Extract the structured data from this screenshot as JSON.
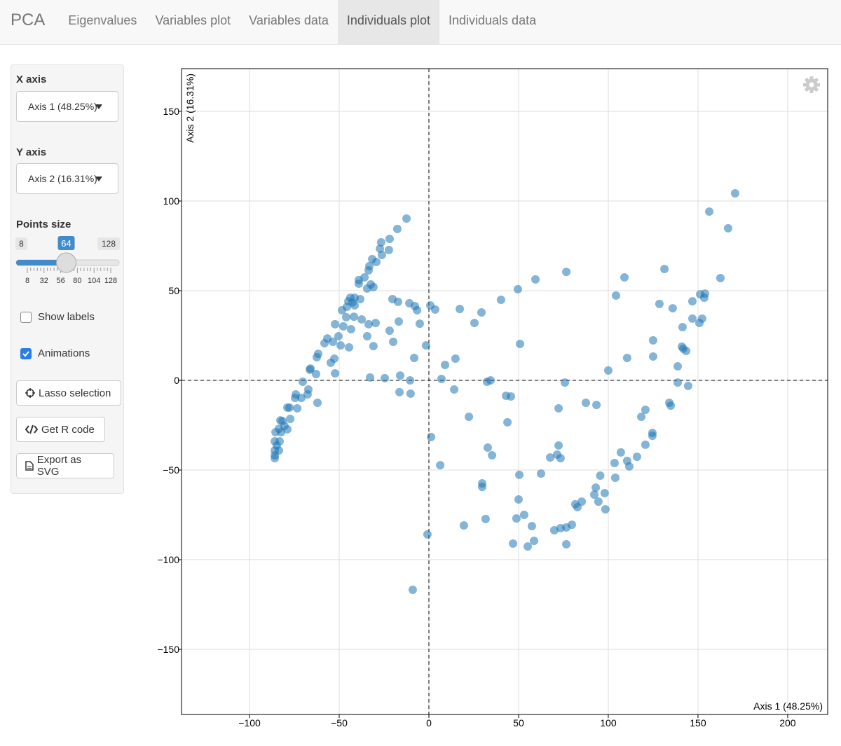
{
  "nav": {
    "brand": "PCA",
    "tabs": [
      "Eigenvalues",
      "Variables plot",
      "Variables data",
      "Individuals plot",
      "Individuals data"
    ],
    "active": 3
  },
  "sidebar": {
    "x_axis_label": "X axis",
    "x_axis_value": "Axis 1 (48.25%)",
    "y_axis_label": "Y axis",
    "y_axis_value": "Axis 2 (16.31%)",
    "points_size": {
      "label": "Points size",
      "min": 8,
      "max": 128,
      "value": 64,
      "ticks": [
        8,
        32,
        56,
        80,
        104,
        128
      ]
    },
    "checkboxes": [
      {
        "label": "Show labels",
        "checked": false
      },
      {
        "label": "Animations",
        "checked": true
      }
    ],
    "buttons": [
      "Lasso selection",
      "Get R code",
      "Export as SVG"
    ]
  },
  "chart_data": {
    "type": "scatter",
    "x_label": "Axis 1 (48.25%)",
    "y_label": "Axis 2 (16.31%)",
    "color": "#1f77b4",
    "grid": true,
    "zero_lines": true,
    "xlim": [
      -137.9,
      222.3
    ],
    "ylim": [
      -186.3,
      173.8
    ],
    "xticks": [
      {
        "value": -100,
        "label": "−100"
      },
      {
        "value": -50,
        "label": "−50"
      },
      0,
      50,
      100,
      150,
      200
    ],
    "yticks": [
      {
        "value": -150,
        "label": "−150"
      },
      {
        "value": -100,
        "label": "−100"
      },
      {
        "value": -50,
        "label": "−50"
      },
      0,
      50,
      100,
      150
    ],
    "x": [
      -12.5,
      -17.6,
      -21.9,
      -26.6,
      -22.3,
      -27.3,
      -26.2,
      -31.6,
      -29.3,
      -33.2,
      -33.6,
      -35.9,
      -39.1,
      -32.4,
      -34.4,
      -39.1,
      -43.8,
      -41.4,
      -38.3,
      -44.9,
      -42.6,
      -45.7,
      -48.4,
      -41.4,
      -46.1,
      -41.8,
      -37.5,
      -52.3,
      -47.7,
      -43.4,
      -50.4,
      -53.5,
      -56.6,
      -58.2,
      -49.2,
      -44.5,
      -61.7,
      -62.5,
      -52.7,
      -54.7,
      -66.0,
      -66.4,
      -62.9,
      -52.3,
      -70.3,
      -67.2,
      -67.6,
      -74.2,
      -74.6,
      -71.1,
      -62.1,
      -73.4,
      -78.9,
      -77.7,
      -77.3,
      -82.8,
      -81.6,
      -80.5,
      -83.6,
      -78.9,
      -85.5,
      -82.4,
      -85.9,
      -83.2,
      -84.8,
      -85.9,
      -83.6,
      -85.9,
      -85.9,
      -30.9,
      -20.3,
      -17.2,
      -10.9,
      -7.8,
      -6.6,
      0.8,
      3.5,
      -16.8,
      -5.1,
      -29.7,
      -33.6,
      -21.9,
      -34.4,
      -19.9,
      -30.9,
      -1.6,
      -8.2,
      -32.8,
      -24.6,
      -16.0,
      -10.5,
      -16.4,
      -10.2,
      76.6,
      59.4,
      49.6,
      40.2,
      17.2,
      29.3,
      25.4,
      50.8,
      14.8,
      9.0,
      7.0,
      32.4,
      34.4,
      14.1,
      43.0,
      45.7,
      75.8,
      22.3,
      43.8,
      72.3,
      87.5,
      93.4,
      100.0,
      110.5,
      104.3,
      109.0,
      131.3,
      128.5,
      135.9,
      146.9,
      151.2,
      153.9,
      153.5,
      162.5,
      166.8,
      156.3,
      170.7,
      152.3,
      150.8,
      146.9,
      141.4,
      141.0,
      141.8,
      143.4,
      125.0,
      125.0,
      138.7,
      138.7,
      144.5,
      134.0,
      134.8,
      120.7,
      118.4,
      124.6,
      124.6,
      120.7,
      116.0,
      107.0,
      110.5,
      111.7,
      103.5,
      103.9,
      95.5,
      93.0,
      98.0,
      92.2,
      94.5,
      98.4,
      85.2,
      81.6,
      82.8,
      79.7,
      76.6,
      73.4,
      69.9,
      76.6,
      58.6,
      55.1,
      46.9,
      57.4,
      53.1,
      48.8,
      50.0,
      50.4,
      62.5,
      67.6,
      71.5,
      72.3,
      73.4,
      32.8,
      35.2,
      29.7,
      29.7,
      31.6,
      19.5,
      6.3,
      1.2,
      -0.8,
      -9.0
    ],
    "values": [
      90.2,
      84.4,
      78.9,
      77.0,
      72.7,
      73.4,
      69.9,
      67.6,
      66.0,
      63.7,
      61.3,
      57.4,
      55.9,
      53.5,
      51.2,
      53.9,
      46.1,
      46.1,
      45.3,
      44.1,
      43.4,
      41.0,
      39.1,
      41.8,
      35.2,
      35.5,
      34.0,
      31.3,
      30.1,
      28.5,
      24.6,
      21.5,
      23.4,
      20.7,
      19.5,
      18.4,
      14.8,
      12.9,
      12.1,
      9.8,
      6.6,
      5.9,
      3.5,
      3.9,
      -0.8,
      -5.1,
      -7.8,
      -7.8,
      -9.8,
      -9.8,
      -12.5,
      -15.6,
      -15.2,
      -15.2,
      -21.5,
      -22.3,
      -22.7,
      -25.4,
      -27.0,
      -27.3,
      -28.9,
      -28.9,
      -34.0,
      -34.0,
      -36.3,
      -39.1,
      -39.1,
      -41.8,
      -43.4,
      52.0,
      45.3,
      43.8,
      43.0,
      41.4,
      39.1,
      41.8,
      39.5,
      32.8,
      31.6,
      32.0,
      31.3,
      27.7,
      24.6,
      21.5,
      19.1,
      19.5,
      12.5,
      1.6,
      1.2,
      2.7,
      0,
      -6.6,
      -7.4,
      60.5,
      56.3,
      50.8,
      44.9,
      39.8,
      37.9,
      32.0,
      20.3,
      12.1,
      8.6,
      0.8,
      -0.8,
      0,
      -5.1,
      -8.6,
      -9.0,
      -1.2,
      -20.3,
      -23.4,
      -15.6,
      -12.5,
      -13.7,
      5.5,
      12.5,
      47.3,
      57.4,
      62.1,
      42.6,
      40.2,
      44.1,
      48.0,
      48.4,
      46.1,
      57.0,
      84.8,
      94.1,
      104.3,
      34.4,
      32.0,
      34.4,
      29.7,
      18.8,
      17.6,
      16.4,
      22.3,
      13.3,
      7.8,
      -1.2,
      -3.1,
      -12.5,
      -14.1,
      -16.4,
      -20.3,
      -29.3,
      -30.9,
      -35.9,
      -42.6,
      -40.2,
      -44.9,
      -48.0,
      -46.1,
      -54.3,
      -53.1,
      -59.8,
      -62.9,
      -63.7,
      -67.6,
      -71.9,
      -67.6,
      -69.1,
      -70.7,
      -80.5,
      -82.0,
      -82.4,
      -83.6,
      -91.4,
      -89.5,
      -92.6,
      -91.0,
      -81.3,
      -75.0,
      -77.0,
      -66.4,
      -52.7,
      -52.0,
      -43.0,
      -41.4,
      -36.3,
      -43.4,
      -37.5,
      -41.8,
      -57.4,
      -59.4,
      -77.3,
      -80.9,
      -47.3,
      -31.6,
      -85.9,
      -116.8
    ]
  }
}
